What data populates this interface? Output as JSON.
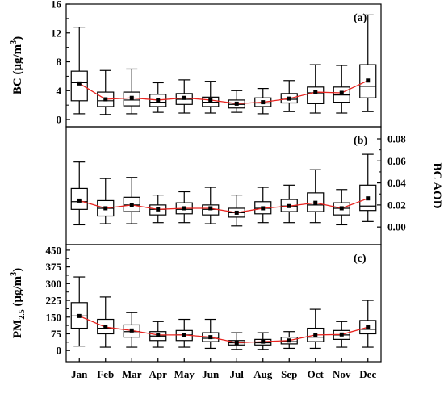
{
  "chart_data": {
    "type": "box",
    "months": [
      "Jan",
      "Feb",
      "Mar",
      "Apr",
      "May",
      "Jun",
      "Jul",
      "Aug",
      "Sep",
      "Oct",
      "Nov",
      "Dec"
    ],
    "mean_line_color": "#e8231f",
    "panels": [
      {
        "label": "(a)",
        "ylabel_main": "BC (μg/m",
        "ylabel_sup": "3",
        "ylabel_end": ")",
        "axis_side": "left",
        "ylim": [
          -1,
          16
        ],
        "ticks": [
          0,
          4,
          8,
          12,
          16
        ],
        "tick_labels": [
          "0",
          "4",
          "8",
          "12",
          "16"
        ],
        "boxes": [
          {
            "whisker_low": 0.8,
            "q1": 2.6,
            "median": 5.1,
            "q3": 6.7,
            "whisker_high": 12.8,
            "mean": 5.0
          },
          {
            "whisker_low": 0.7,
            "q1": 1.8,
            "median": 2.6,
            "q3": 3.8,
            "whisker_high": 6.8,
            "mean": 2.8
          },
          {
            "whisker_low": 0.8,
            "q1": 1.9,
            "median": 2.7,
            "q3": 3.8,
            "whisker_high": 7.0,
            "mean": 3.0
          },
          {
            "whisker_low": 1.0,
            "q1": 1.8,
            "median": 2.4,
            "q3": 3.5,
            "whisker_high": 5.1,
            "mean": 2.7
          },
          {
            "whisker_low": 0.9,
            "q1": 2.1,
            "median": 2.8,
            "q3": 3.6,
            "whisker_high": 5.5,
            "mean": 3.0
          },
          {
            "whisker_low": 0.9,
            "q1": 1.8,
            "median": 2.4,
            "q3": 3.1,
            "whisker_high": 5.3,
            "mean": 2.7
          },
          {
            "whisker_low": 1.0,
            "q1": 1.6,
            "median": 2.1,
            "q3": 2.7,
            "whisker_high": 4.0,
            "mean": 2.2
          },
          {
            "whisker_low": 0.8,
            "q1": 1.8,
            "median": 2.3,
            "q3": 3.0,
            "whisker_high": 4.3,
            "mean": 2.4
          },
          {
            "whisker_low": 1.1,
            "q1": 2.3,
            "median": 2.8,
            "q3": 3.6,
            "whisker_high": 5.4,
            "mean": 2.9
          },
          {
            "whisker_low": 0.9,
            "q1": 2.2,
            "median": 3.7,
            "q3": 4.5,
            "whisker_high": 7.6,
            "mean": 3.8
          },
          {
            "whisker_low": 0.9,
            "q1": 2.4,
            "median": 3.4,
            "q3": 4.5,
            "whisker_high": 7.5,
            "mean": 3.7
          },
          {
            "whisker_low": 1.1,
            "q1": 3.0,
            "median": 4.6,
            "q3": 7.6,
            "whisker_high": 14.5,
            "mean": 5.4
          }
        ]
      },
      {
        "label": "(b)",
        "ylabel": "BC AOD",
        "axis_side": "right",
        "ylim": [
          -0.016,
          0.091
        ],
        "ticks": [
          0,
          0.02,
          0.04,
          0.06,
          0.08
        ],
        "tick_labels": [
          "0.00",
          "0.02",
          "0.04",
          "0.06",
          "0.08"
        ],
        "boxes": [
          {
            "whisker_low": 0.002,
            "q1": 0.016,
            "median": 0.023,
            "q3": 0.035,
            "whisker_high": 0.059,
            "mean": 0.024
          },
          {
            "whisker_low": 0.003,
            "q1": 0.01,
            "median": 0.017,
            "q3": 0.024,
            "whisker_high": 0.044,
            "mean": 0.017
          },
          {
            "whisker_low": 0.003,
            "q1": 0.014,
            "median": 0.02,
            "q3": 0.027,
            "whisker_high": 0.045,
            "mean": 0.02
          },
          {
            "whisker_low": 0.004,
            "q1": 0.011,
            "median": 0.016,
            "q3": 0.02,
            "whisker_high": 0.029,
            "mean": 0.016
          },
          {
            "whisker_low": 0.004,
            "q1": 0.012,
            "median": 0.016,
            "q3": 0.022,
            "whisker_high": 0.032,
            "mean": 0.017
          },
          {
            "whisker_low": 0.003,
            "q1": 0.011,
            "median": 0.016,
            "q3": 0.02,
            "whisker_high": 0.036,
            "mean": 0.017
          },
          {
            "whisker_low": 0.001,
            "q1": 0.009,
            "median": 0.013,
            "q3": 0.017,
            "whisker_high": 0.029,
            "mean": 0.013
          },
          {
            "whisker_low": 0.004,
            "q1": 0.012,
            "median": 0.017,
            "q3": 0.023,
            "whisker_high": 0.036,
            "mean": 0.017
          },
          {
            "whisker_low": 0.004,
            "q1": 0.014,
            "median": 0.019,
            "q3": 0.025,
            "whisker_high": 0.038,
            "mean": 0.019
          },
          {
            "whisker_low": 0.004,
            "q1": 0.014,
            "median": 0.02,
            "q3": 0.031,
            "whisker_high": 0.052,
            "mean": 0.022
          },
          {
            "whisker_low": 0.002,
            "q1": 0.011,
            "median": 0.017,
            "q3": 0.022,
            "whisker_high": 0.034,
            "mean": 0.017
          },
          {
            "whisker_low": 0.005,
            "q1": 0.015,
            "median": 0.019,
            "q3": 0.038,
            "whisker_high": 0.066,
            "mean": 0.026
          }
        ]
      },
      {
        "label": "(c)",
        "ylabel_main": "PM",
        "ylabel_sub": "2.5",
        "ylabel_end": " (μg/m",
        "ylabel_sup": "3",
        "ylabel_end2": ")",
        "axis_side": "left",
        "ylim": [
          -50,
          475
        ],
        "ticks": [
          0,
          75,
          150,
          225,
          300,
          375,
          450
        ],
        "tick_labels": [
          "0",
          "75",
          "150",
          "225",
          "300",
          "375",
          "450"
        ],
        "boxes": [
          {
            "whisker_low": 20,
            "q1": 100,
            "median": 155,
            "q3": 215,
            "whisker_high": 330,
            "mean": 155
          },
          {
            "whisker_low": 15,
            "q1": 75,
            "median": 100,
            "q3": 140,
            "whisker_high": 240,
            "mean": 105
          },
          {
            "whisker_low": 15,
            "q1": 60,
            "median": 85,
            "q3": 115,
            "whisker_high": 170,
            "mean": 90
          },
          {
            "whisker_low": 15,
            "q1": 45,
            "median": 65,
            "q3": 85,
            "whisker_high": 130,
            "mean": 70
          },
          {
            "whisker_low": 15,
            "q1": 45,
            "median": 70,
            "q3": 90,
            "whisker_high": 140,
            "mean": 70
          },
          {
            "whisker_low": 10,
            "q1": 40,
            "median": 55,
            "q3": 80,
            "whisker_high": 140,
            "mean": 60
          },
          {
            "whisker_low": 5,
            "q1": 25,
            "median": 35,
            "q3": 45,
            "whisker_high": 80,
            "mean": 35
          },
          {
            "whisker_low": 5,
            "q1": 25,
            "median": 35,
            "q3": 50,
            "whisker_high": 80,
            "mean": 40
          },
          {
            "whisker_low": 10,
            "q1": 30,
            "median": 40,
            "q3": 60,
            "whisker_high": 85,
            "mean": 45
          },
          {
            "whisker_low": 10,
            "q1": 40,
            "median": 60,
            "q3": 100,
            "whisker_high": 185,
            "mean": 70
          },
          {
            "whisker_low": 15,
            "q1": 50,
            "median": 70,
            "q3": 90,
            "whisker_high": 130,
            "mean": 72
          },
          {
            "whisker_low": 15,
            "q1": 75,
            "median": 95,
            "q3": 135,
            "whisker_high": 225,
            "mean": 105
          }
        ]
      }
    ]
  }
}
